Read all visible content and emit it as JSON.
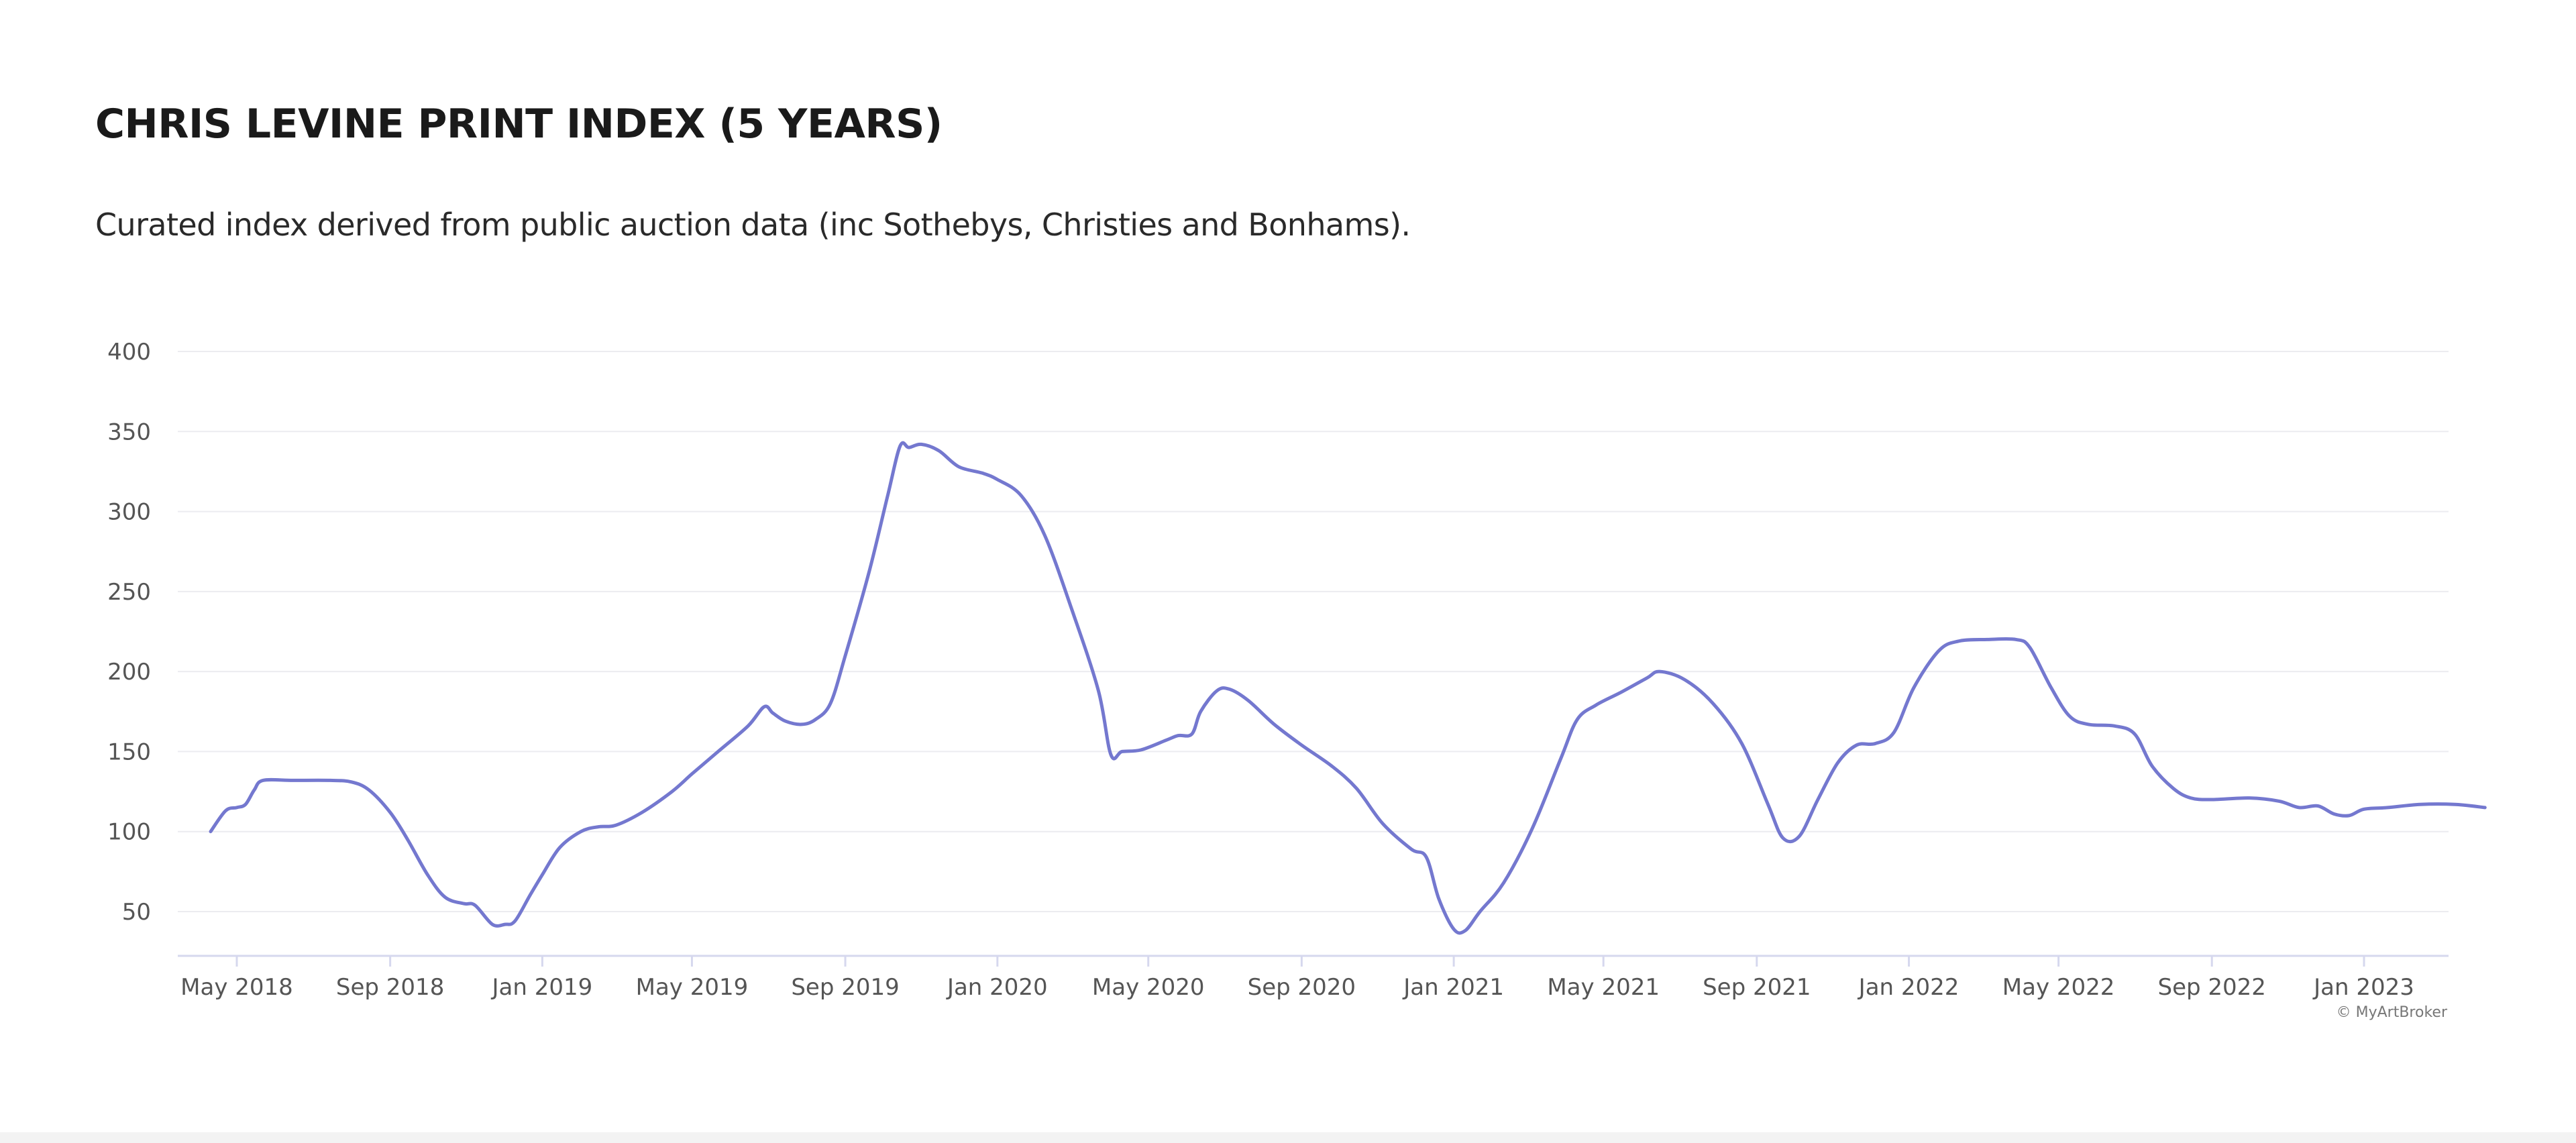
{
  "header": {
    "title": "CHRIS LEVINE PRINT INDEX (5 YEARS)",
    "subtitle": "Curated index derived from public auction data (inc Sothebys, Christies and Bonhams)."
  },
  "credit": "© MyArtBroker",
  "colors": {
    "line": "#7478cf",
    "grid": "#ececf0",
    "axis": "#d6d8ee",
    "text": "#555555"
  },
  "chart_data": {
    "type": "line",
    "title": "CHRIS LEVINE PRINT INDEX (5 YEARS)",
    "xlabel": "",
    "ylabel": "",
    "ylim": [
      20,
      400
    ],
    "yticks": [
      50,
      100,
      150,
      200,
      250,
      300,
      350,
      400
    ],
    "xlim": [
      "2018-04-01",
      "2023-06-01"
    ],
    "xticks": [
      {
        "date": "2018-05-01",
        "label": "May 2018"
      },
      {
        "date": "2018-09-01",
        "label": "Sep 2018"
      },
      {
        "date": "2019-01-01",
        "label": "Jan 2019"
      },
      {
        "date": "2019-05-01",
        "label": "May 2019"
      },
      {
        "date": "2019-09-01",
        "label": "Sep 2019"
      },
      {
        "date": "2020-01-01",
        "label": "Jan 2020"
      },
      {
        "date": "2020-05-01",
        "label": "May 2020"
      },
      {
        "date": "2020-09-01",
        "label": "Sep 2020"
      },
      {
        "date": "2021-01-01",
        "label": "Jan 2021"
      },
      {
        "date": "2021-05-01",
        "label": "May 2021"
      },
      {
        "date": "2021-09-01",
        "label": "Sep 2021"
      },
      {
        "date": "2022-01-01",
        "label": "Jan 2022"
      },
      {
        "date": "2022-05-01",
        "label": "May 2022"
      },
      {
        "date": "2022-09-01",
        "label": "Sep 2022"
      },
      {
        "date": "2023-01-01",
        "label": "Jan 2023"
      }
    ],
    "grid": true,
    "legend": "none",
    "series": [
      {
        "points": [
          [
            "2018-04-10",
            100
          ],
          [
            "2018-04-22",
            113
          ],
          [
            "2018-05-01",
            115
          ],
          [
            "2018-05-08",
            117
          ],
          [
            "2018-05-15",
            126
          ],
          [
            "2018-05-22",
            132
          ],
          [
            "2018-06-15",
            132
          ],
          [
            "2018-07-15",
            132
          ],
          [
            "2018-08-01",
            131
          ],
          [
            "2018-08-15",
            126
          ],
          [
            "2018-09-01",
            112
          ],
          [
            "2018-09-15",
            95
          ],
          [
            "2018-10-01",
            73
          ],
          [
            "2018-10-15",
            59
          ],
          [
            "2018-10-30",
            55
          ],
          [
            "2018-11-08",
            54
          ],
          [
            "2018-11-22",
            42
          ],
          [
            "2018-12-02",
            42
          ],
          [
            "2018-12-10",
            44
          ],
          [
            "2018-12-22",
            60
          ],
          [
            "2019-01-01",
            73
          ],
          [
            "2019-01-15",
            90
          ],
          [
            "2019-02-01",
            100
          ],
          [
            "2019-02-15",
            103
          ],
          [
            "2019-03-01",
            104
          ],
          [
            "2019-03-22",
            112
          ],
          [
            "2019-04-15",
            125
          ],
          [
            "2019-05-01",
            136
          ],
          [
            "2019-05-22",
            150
          ],
          [
            "2019-06-15",
            166
          ],
          [
            "2019-06-28",
            178
          ],
          [
            "2019-07-05",
            174
          ],
          [
            "2019-07-15",
            169
          ],
          [
            "2019-07-28",
            167
          ],
          [
            "2019-08-08",
            170
          ],
          [
            "2019-08-20",
            180
          ],
          [
            "2019-09-01",
            210
          ],
          [
            "2019-09-20",
            262
          ],
          [
            "2019-10-05",
            310
          ],
          [
            "2019-10-15",
            341
          ],
          [
            "2019-10-22",
            340
          ],
          [
            "2019-11-01",
            342
          ],
          [
            "2019-11-15",
            338
          ],
          [
            "2019-12-01",
            328
          ],
          [
            "2019-12-20",
            324
          ],
          [
            "2020-01-01",
            320
          ],
          [
            "2020-01-20",
            310
          ],
          [
            "2020-02-08",
            285
          ],
          [
            "2020-03-01",
            238
          ],
          [
            "2020-03-22",
            188
          ],
          [
            "2020-04-01",
            148
          ],
          [
            "2020-04-10",
            150
          ],
          [
            "2020-04-25",
            151
          ],
          [
            "2020-05-15",
            157
          ],
          [
            "2020-05-25",
            160
          ],
          [
            "2020-06-05",
            161
          ],
          [
            "2020-06-12",
            175
          ],
          [
            "2020-06-25",
            188
          ],
          [
            "2020-07-05",
            189
          ],
          [
            "2020-07-20",
            182
          ],
          [
            "2020-08-10",
            167
          ],
          [
            "2020-09-01",
            154
          ],
          [
            "2020-09-25",
            141
          ],
          [
            "2020-10-15",
            127
          ],
          [
            "2020-11-05",
            105
          ],
          [
            "2020-11-28",
            89
          ],
          [
            "2020-12-10",
            84
          ],
          [
            "2020-12-20",
            58
          ],
          [
            "2021-01-01",
            39
          ],
          [
            "2021-01-10",
            38
          ],
          [
            "2021-01-22",
            50
          ],
          [
            "2021-02-10",
            68
          ],
          [
            "2021-03-05",
            102
          ],
          [
            "2021-03-28",
            146
          ],
          [
            "2021-04-10",
            170
          ],
          [
            "2021-04-25",
            179
          ],
          [
            "2021-05-15",
            187
          ],
          [
            "2021-06-05",
            196
          ],
          [
            "2021-06-15",
            200
          ],
          [
            "2021-07-05",
            195
          ],
          [
            "2021-07-28",
            180
          ],
          [
            "2021-08-20",
            155
          ],
          [
            "2021-09-10",
            117
          ],
          [
            "2021-09-22",
            96
          ],
          [
            "2021-10-05",
            97
          ],
          [
            "2021-10-20",
            120
          ],
          [
            "2021-11-05",
            143
          ],
          [
            "2021-11-20",
            154
          ],
          [
            "2021-12-05",
            155
          ],
          [
            "2021-12-20",
            162
          ],
          [
            "2022-01-05",
            190
          ],
          [
            "2022-01-25",
            213
          ],
          [
            "2022-02-10",
            219
          ],
          [
            "2022-03-05",
            220
          ],
          [
            "2022-03-28",
            220
          ],
          [
            "2022-04-08",
            215
          ],
          [
            "2022-04-25",
            190
          ],
          [
            "2022-05-10",
            172
          ],
          [
            "2022-05-25",
            167
          ],
          [
            "2022-06-15",
            166
          ],
          [
            "2022-07-01",
            161
          ],
          [
            "2022-07-15",
            141
          ],
          [
            "2022-08-01",
            127
          ],
          [
            "2022-08-15",
            121
          ],
          [
            "2022-09-01",
            120
          ],
          [
            "2022-10-01",
            121
          ],
          [
            "2022-10-25",
            119
          ],
          [
            "2022-11-10",
            115
          ],
          [
            "2022-11-25",
            116
          ],
          [
            "2022-12-08",
            111
          ],
          [
            "2022-12-20",
            110
          ],
          [
            "2023-01-01",
            114
          ],
          [
            "2023-01-20",
            115
          ],
          [
            "2023-02-15",
            117
          ],
          [
            "2023-03-15",
            117
          ],
          [
            "2023-04-08",
            115
          ]
        ]
      }
    ]
  }
}
